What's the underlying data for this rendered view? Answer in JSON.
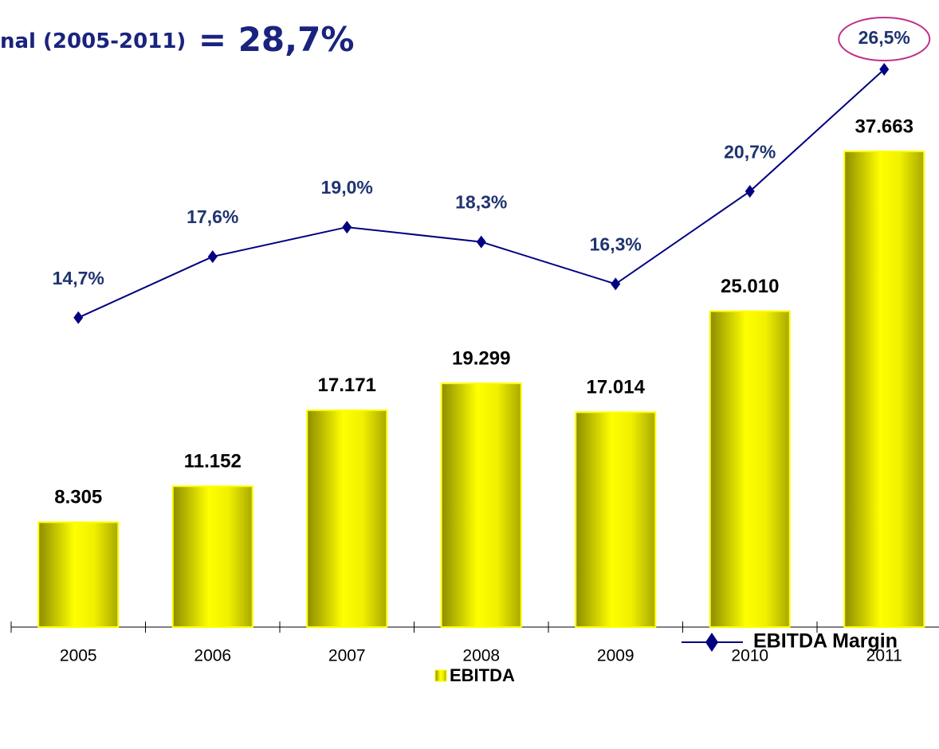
{
  "chart_data": {
    "type": "bar-line",
    "title": "nal (2005-2011)",
    "title_highlight": "= 28,7%",
    "categories": [
      "2005",
      "2006",
      "2007",
      "2008",
      "2009",
      "2010",
      "2011"
    ],
    "ylim": [
      0,
      40000
    ],
    "y2lim": [
      0,
      24
    ],
    "series": [
      {
        "name": "EBITDA",
        "type": "bar",
        "color": "#ffff00",
        "values": [
          8305,
          11152,
          17171,
          19299,
          17014,
          25010,
          37663
        ],
        "value_labels": [
          "8.305",
          "11.152",
          "17.171",
          "19.299",
          "17.014",
          "25.010",
          "37.663"
        ]
      },
      {
        "name": "EBITDA Margin",
        "type": "line",
        "axis": "y2",
        "color": "#000080",
        "values": [
          14.7,
          17.6,
          19.0,
          18.3,
          16.3,
          20.7,
          26.5
        ],
        "value_labels": [
          "14,7%",
          "17,6%",
          "19,0%",
          "18,3%",
          "16,3%",
          "20,7%",
          "26,5%"
        ]
      }
    ]
  }
}
